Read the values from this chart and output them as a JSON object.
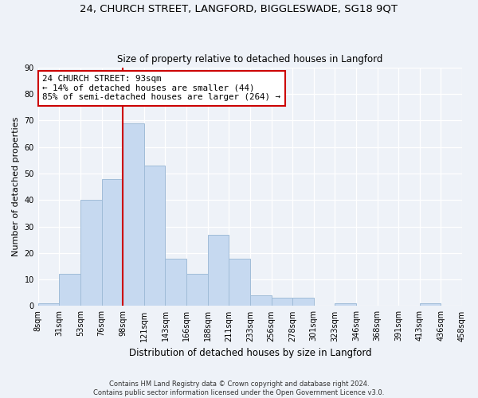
{
  "title1": "24, CHURCH STREET, LANGFORD, BIGGLESWADE, SG18 9QT",
  "title2": "Size of property relative to detached houses in Langford",
  "xlabel": "Distribution of detached houses by size in Langford",
  "ylabel": "Number of detached properties",
  "bar_color": "#c6d9f0",
  "bar_edge_color": "#a0bcd8",
  "bin_labels": [
    "8sqm",
    "31sqm",
    "53sqm",
    "76sqm",
    "98sqm",
    "121sqm",
    "143sqm",
    "166sqm",
    "188sqm",
    "211sqm",
    "233sqm",
    "256sqm",
    "278sqm",
    "301sqm",
    "323sqm",
    "346sqm",
    "368sqm",
    "391sqm",
    "413sqm",
    "436sqm",
    "458sqm"
  ],
  "bar_heights": [
    1,
    12,
    40,
    48,
    69,
    53,
    18,
    12,
    27,
    18,
    4,
    3,
    3,
    0,
    1,
    0,
    0,
    0,
    1,
    0
  ],
  "vline_color": "#cc0000",
  "vline_pos": 3.5,
  "annotation_line1": "24 CHURCH STREET: 93sqm",
  "annotation_line2": "← 14% of detached houses are smaller (44)",
  "annotation_line3": "85% of semi-detached houses are larger (264) →",
  "annotation_box_color": "white",
  "annotation_box_edge": "#cc0000",
  "ylim": [
    0,
    90
  ],
  "yticks": [
    0,
    10,
    20,
    30,
    40,
    50,
    60,
    70,
    80,
    90
  ],
  "footer1": "Contains HM Land Registry data © Crown copyright and database right 2024.",
  "footer2": "Contains public sector information licensed under the Open Government Licence v3.0.",
  "background_color": "#eef2f8",
  "grid_color": "#ffffff",
  "title1_fontsize": 9.5,
  "title2_fontsize": 8.5,
  "ylabel_fontsize": 8,
  "xlabel_fontsize": 8.5,
  "tick_fontsize": 7,
  "annotation_fontsize": 7.8,
  "footer_fontsize": 6
}
